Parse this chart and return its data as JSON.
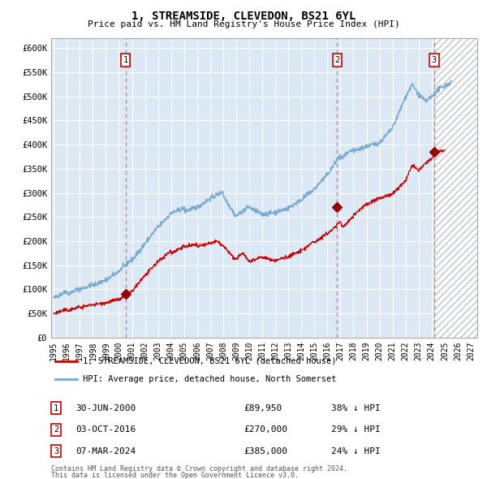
{
  "title": "1, STREAMSIDE, CLEVEDON, BS21 6YL",
  "subtitle": "Price paid vs. HM Land Registry's House Price Index (HPI)",
  "background_color": "#ffffff",
  "plot_bg_color": "#dce9f5",
  "grid_color": "#ffffff",
  "red_line_color": "#cc0000",
  "blue_line_color": "#7aabcf",
  "marker_color": "#990000",
  "dashed_line_color": "#ff6666",
  "sales": [
    {
      "num": 1,
      "date_str": "30-JUN-2000",
      "date_x": 2000.5,
      "price": 89950,
      "pct": "38%",
      "dir": "↓"
    },
    {
      "num": 2,
      "date_str": "03-OCT-2016",
      "date_x": 2016.75,
      "price": 270000,
      "pct": "29%",
      "dir": "↓"
    },
    {
      "num": 3,
      "date_str": "07-MAR-2024",
      "date_x": 2024.19,
      "price": 385000,
      "pct": "24%",
      "dir": "↓"
    }
  ],
  "ylim": [
    0,
    620000
  ],
  "xlim_start": 1994.8,
  "xlim_end": 2027.5,
  "yticks": [
    0,
    50000,
    100000,
    150000,
    200000,
    250000,
    300000,
    350000,
    400000,
    450000,
    500000,
    550000,
    600000
  ],
  "ytick_labels": [
    "£0",
    "£50K",
    "£100K",
    "£150K",
    "£200K",
    "£250K",
    "£300K",
    "£350K",
    "£400K",
    "£450K",
    "£500K",
    "£550K",
    "£600K"
  ],
  "xticks": [
    1995,
    1996,
    1997,
    1998,
    1999,
    2000,
    2001,
    2002,
    2003,
    2004,
    2005,
    2006,
    2007,
    2008,
    2009,
    2010,
    2011,
    2012,
    2013,
    2014,
    2015,
    2016,
    2017,
    2018,
    2019,
    2020,
    2021,
    2022,
    2023,
    2024,
    2025,
    2026,
    2027
  ],
  "legend_label_red": "1, STREAMSIDE, CLEVEDON, BS21 6YL (detached house)",
  "legend_label_blue": "HPI: Average price, detached house, North Somerset",
  "footer1": "Contains HM Land Registry data © Crown copyright and database right 2024.",
  "footer2": "This data is licensed under the Open Government Licence v3.0.",
  "hatch_start": 2024.19,
  "hatch_end": 2027.5
}
